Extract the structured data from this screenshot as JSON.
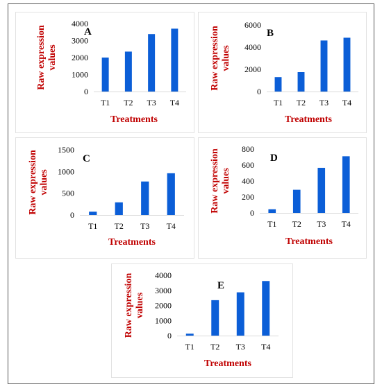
{
  "chart_data": [
    {
      "type": "bar",
      "label": "A",
      "categories": [
        "T1",
        "T2",
        "T3",
        "T4"
      ],
      "values": [
        2000,
        2350,
        3380,
        3700
      ],
      "xlabel": "Treatments",
      "ylabel": [
        "Raw expression",
        "values"
      ],
      "yticks": [
        "0",
        "1000",
        "2000",
        "3000",
        "4000"
      ],
      "ylim": [
        0,
        4000
      ],
      "color": "#0b5ed7"
    },
    {
      "type": "bar",
      "label": "B",
      "categories": [
        "T1",
        "T2",
        "T3",
        "T4"
      ],
      "values": [
        1300,
        1750,
        4600,
        4850
      ],
      "xlabel": "Treatments",
      "ylabel": [
        "Raw expression",
        "values"
      ],
      "yticks": [
        "0",
        "2000",
        "4000",
        "6000"
      ],
      "ylim": [
        0,
        6000
      ],
      "color": "#0b5ed7"
    },
    {
      "type": "bar",
      "label": "C",
      "categories": [
        "T1",
        "T2",
        "T3",
        "T4"
      ],
      "values": [
        75,
        290,
        770,
        960
      ],
      "xlabel": "Treatments",
      "ylabel": [
        "Raw expression",
        "values"
      ],
      "yticks": [
        "0",
        "500",
        "1000",
        "1500"
      ],
      "ylim": [
        0,
        1500
      ],
      "color": "#0b5ed7"
    },
    {
      "type": "bar",
      "label": "D",
      "categories": [
        "T1",
        "T2",
        "T3",
        "T4"
      ],
      "values": [
        45,
        290,
        565,
        710
      ],
      "xlabel": "Treatments",
      "ylabel": [
        "Raw expression",
        "values"
      ],
      "yticks": [
        "0",
        "200",
        "400",
        "600",
        "800"
      ],
      "ylim": [
        0,
        800
      ],
      "color": "#0b5ed7"
    },
    {
      "type": "bar",
      "label": "E",
      "categories": [
        "T1",
        "T2",
        "T3",
        "T4"
      ],
      "values": [
        130,
        2350,
        2870,
        3620
      ],
      "xlabel": "Treatments",
      "ylabel": [
        "Raw expression",
        "values"
      ],
      "yticks": [
        "0",
        "1000",
        "2000",
        "3000",
        "4000"
      ],
      "ylim": [
        0,
        4000
      ],
      "color": "#0b5ed7"
    }
  ]
}
